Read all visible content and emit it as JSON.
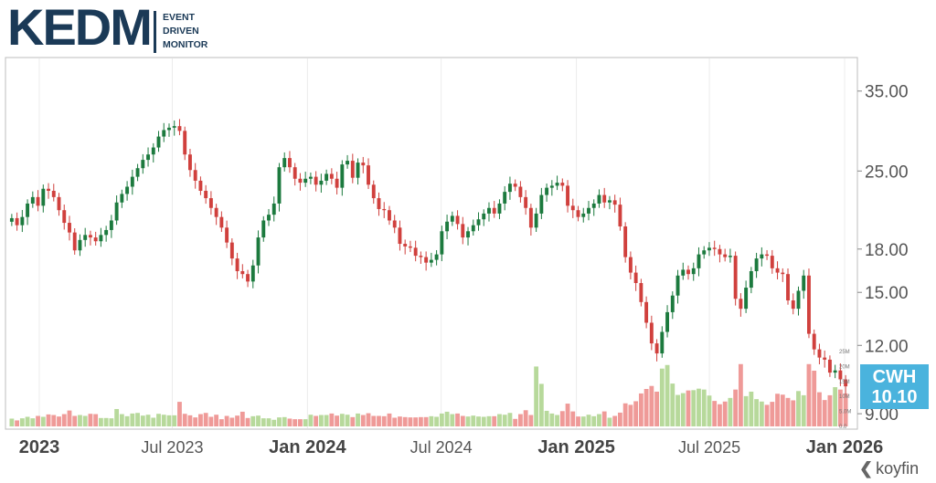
{
  "logo": {
    "mark": "KEDM",
    "tagline": [
      "EVENT",
      "DRIVEN",
      "MONITOR"
    ]
  },
  "ticker": {
    "symbol": "CWH",
    "last_price": "10.10"
  },
  "source": {
    "brand": "koyfin",
    "icon": "koyfin-logo-icon"
  },
  "colors": {
    "up": "#1c7a3e",
    "down": "#d0403d",
    "vol_up": "#b7d99b",
    "vol_down": "#ef9a98",
    "tag": "#4ab3dd"
  },
  "chart_data": {
    "type": "candlestick",
    "scale": "log",
    "ylim": [
      8.5,
      40
    ],
    "price_ticks": [
      "35.00",
      "25.00",
      "18.00",
      "15.00",
      "12.00",
      "9.00"
    ],
    "x_ticks": [
      "2023",
      "Jul 2023",
      "Jan 2024",
      "Jul 2024",
      "Jan 2025",
      "Jul 2025",
      "Jan 2026"
    ],
    "x_tick_bold": [
      true,
      false,
      true,
      false,
      true,
      false,
      true
    ],
    "x_range": [
      "2022-11-21",
      "2026-01-06"
    ],
    "volume_ticks": [
      "25M",
      "20M",
      "15M",
      "10M",
      "5.0M",
      "0.0"
    ],
    "volume_max": 25,
    "volume_unit": "M",
    "close": [
      20.5,
      19.9,
      20.6,
      21.8,
      22.4,
      21.6,
      23.2,
      23.0,
      22.4,
      21.2,
      20.1,
      19.3,
      17.9,
      18.7,
      19.1,
      18.9,
      18.6,
      19.1,
      19.5,
      20.3,
      21.9,
      22.7,
      23.4,
      24.4,
      25.3,
      26.2,
      26.8,
      27.6,
      28.9,
      29.7,
      30.0,
      30.2,
      29.6,
      26.8,
      25.1,
      24.0,
      23.0,
      22.3,
      21.4,
      20.6,
      19.7,
      18.5,
      17.3,
      16.4,
      16.2,
      15.7,
      16.8,
      18.9,
      20.3,
      20.8,
      21.8,
      25.4,
      26.4,
      25.4,
      24.2,
      23.8,
      24.2,
      24.4,
      23.6,
      24.0,
      24.7,
      24.2,
      23.3,
      25.7,
      26.1,
      24.3,
      25.9,
      25.6,
      23.6,
      22.3,
      21.3,
      21.2,
      20.3,
      19.7,
      18.4,
      18.2,
      18.1,
      17.5,
      17.4,
      17.0,
      17.2,
      17.6,
      19.4,
      20.2,
      20.7,
      20.0,
      18.9,
      19.4,
      19.9,
      20.4,
      20.9,
      21.4,
      20.9,
      21.8,
      22.9,
      23.7,
      23.4,
      22.4,
      21.4,
      19.7,
      20.9,
      22.6,
      23.3,
      23.5,
      23.8,
      23.5,
      21.6,
      21.2,
      20.6,
      20.9,
      21.4,
      21.8,
      22.6,
      21.9,
      22.1,
      21.7,
      19.8,
      17.4,
      16.3,
      15.6,
      14.4,
      13.2,
      12.1,
      11.6,
      12.7,
      13.8,
      14.8,
      16.1,
      16.5,
      16.2,
      16.6,
      17.6,
      17.9,
      18.1,
      18.0,
      17.6,
      17.4,
      17.5,
      14.6,
      14.0,
      15.3,
      16.4,
      17.3,
      17.6,
      17.5,
      16.6,
      16.3,
      16.2,
      14.5,
      14.0,
      15.1,
      16.1,
      12.6,
      11.8,
      11.4,
      11.3,
      10.7,
      10.8,
      10.4,
      10.1
    ],
    "volume": [
      2.6,
      2.0,
      2.7,
      3.2,
      2.7,
      3.5,
      3.2,
      4.0,
      3.8,
      3.3,
      4.1,
      5.3,
      3.5,
      3.8,
      3.5,
      4.2,
      4.1,
      2.8,
      2.8,
      2.7,
      5.8,
      4.1,
      3.4,
      4.3,
      4.5,
      3.6,
      3.9,
      2.9,
      4.2,
      3.9,
      3.7,
      3.7,
      8.2,
      4.2,
      3.7,
      3.0,
      4.1,
      4.5,
      3.2,
      3.9,
      2.4,
      3.5,
      2.9,
      3.6,
      4.9,
      2.8,
      3.4,
      3.6,
      2.7,
      2.7,
      2.2,
      3.0,
      3.1,
      2.6,
      2.4,
      2.4,
      2.4,
      3.9,
      3.5,
      3.8,
      3.8,
      4.3,
      3.6,
      4.2,
      3.9,
      3.1,
      4.3,
      3.8,
      4.4,
      3.5,
      3.5,
      3.4,
      4.3,
      2.9,
      3.3,
      3.1,
      3.0,
      3.0,
      3.1,
      3.1,
      3.4,
      3.2,
      4.3,
      4.9,
      4.1,
      4.3,
      3.5,
      3.3,
      3.6,
      3.3,
      3.2,
      3.4,
      3.4,
      4.1,
      3.9,
      4.5,
      2.5,
      4.1,
      5.4,
      3.8,
      20.0,
      14.2,
      5.2,
      4.3,
      3.8,
      5.1,
      7.6,
      5.0,
      3.3,
      3.3,
      3.9,
      3.4,
      4.1,
      5.0,
      2.9,
      3.5,
      4.6,
      7.7,
      7.2,
      8.4,
      11.0,
      12.5,
      13.5,
      11.6,
      19.3,
      20.5,
      14.3,
      10.5,
      11.1,
      12.0,
      12.1,
      12.6,
      12.3,
      10.3,
      8.5,
      7.4,
      8.3,
      9.5,
      12.3,
      20.8,
      10.1,
      11.6,
      9.1,
      8.3,
      7.2,
      8.2,
      10.9,
      10.6,
      9.5,
      8.7,
      11.8,
      10.4,
      20.8,
      18.6,
      11.4,
      8.8,
      10.4,
      13.1,
      12.3,
      11.0
    ]
  }
}
